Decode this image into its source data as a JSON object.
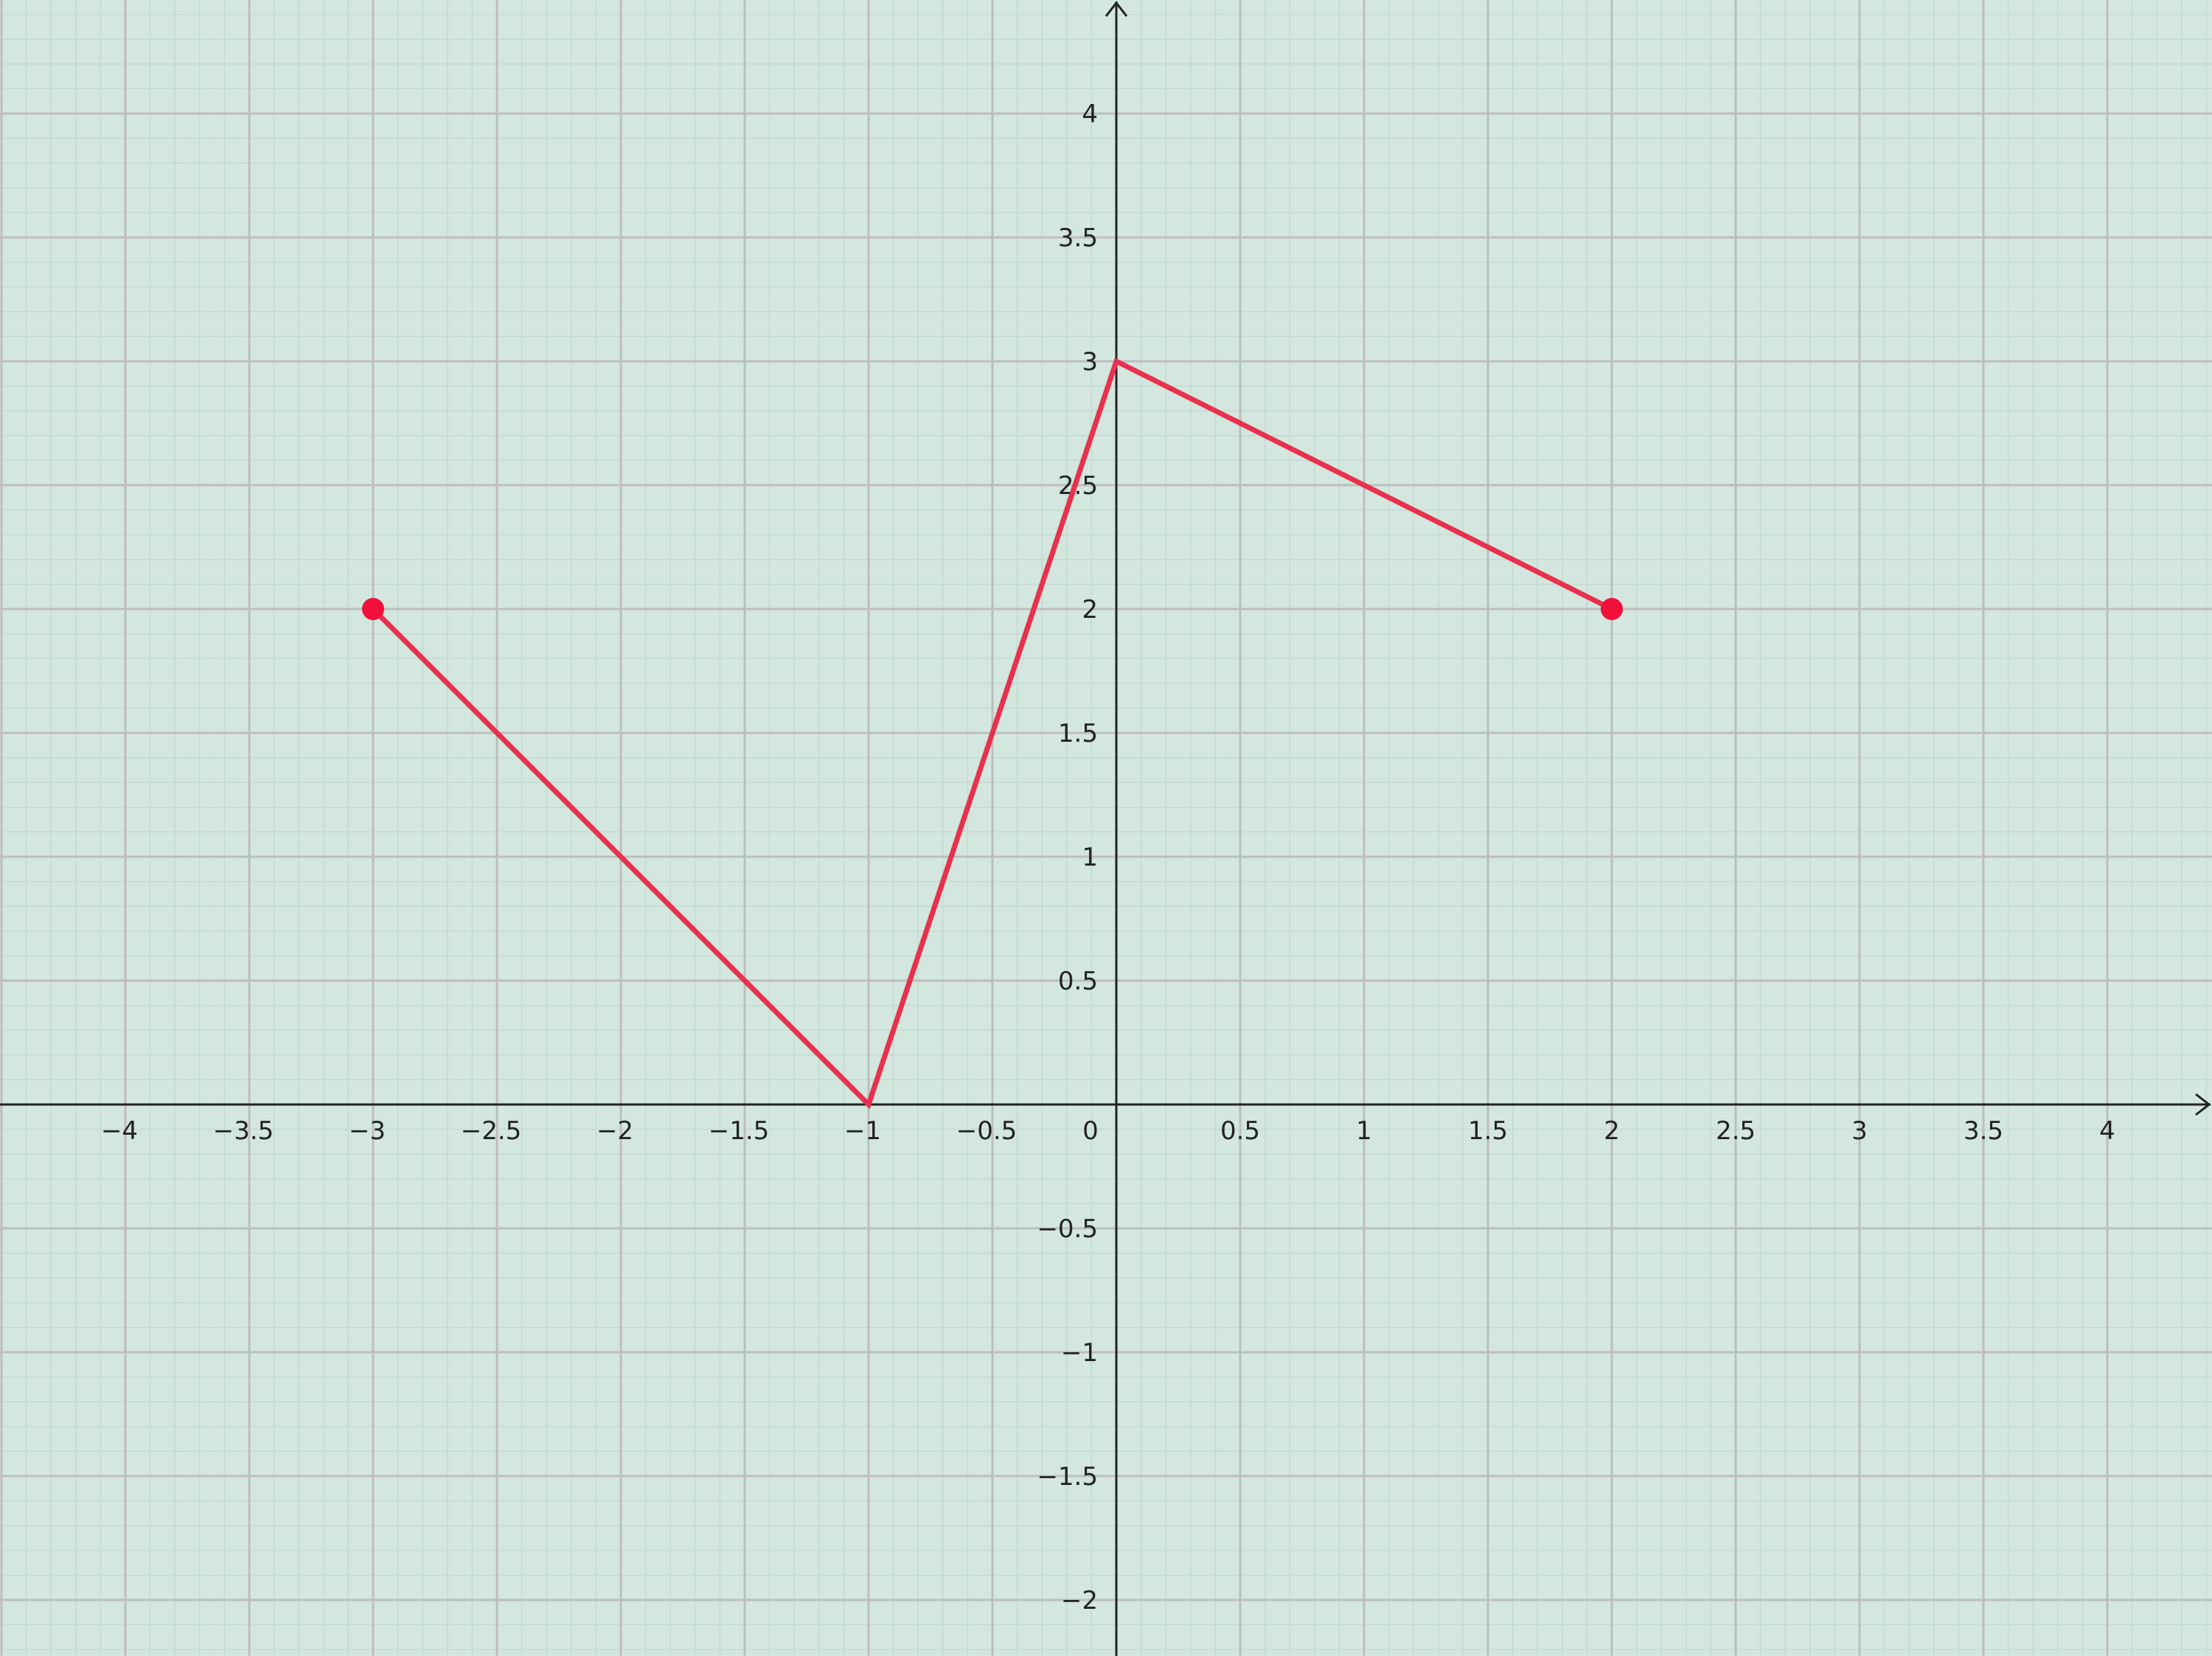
{
  "chart_data": {
    "type": "line",
    "title": "",
    "xlabel": "",
    "ylabel": "",
    "xlim": [
      -4.5,
      4.46
    ],
    "ylim": [
      -2.22,
      4.47
    ],
    "grid": true,
    "major_step": 0.5,
    "minor_step": 0.1,
    "x_ticks": [
      "−4",
      "−3.5",
      "−3",
      "−2.5",
      "−2",
      "−1.5",
      "−1",
      "−0.5",
      "0.5",
      "1",
      "1.5",
      "2",
      "2.5",
      "3",
      "3.5",
      "4"
    ],
    "y_ticks": [
      "−2",
      "−1.5",
      "−1",
      "−0.5",
      "0.5",
      "1",
      "1.5",
      "2",
      "2.5",
      "3",
      "3.5",
      "4"
    ],
    "origin_label": "0",
    "series": [
      {
        "points": [
          [
            -3,
            2
          ],
          [
            -1,
            0
          ],
          [
            0,
            3
          ],
          [
            2,
            2
          ]
        ],
        "color": "#e8304f",
        "endpoint_markers": true
      }
    ],
    "colors": {
      "background": "#d3e7de",
      "major_grid": "#bdbdbd",
      "minor_grid": "#c3d9cf",
      "axis": "#222222",
      "marker": "#f0103a"
    }
  }
}
